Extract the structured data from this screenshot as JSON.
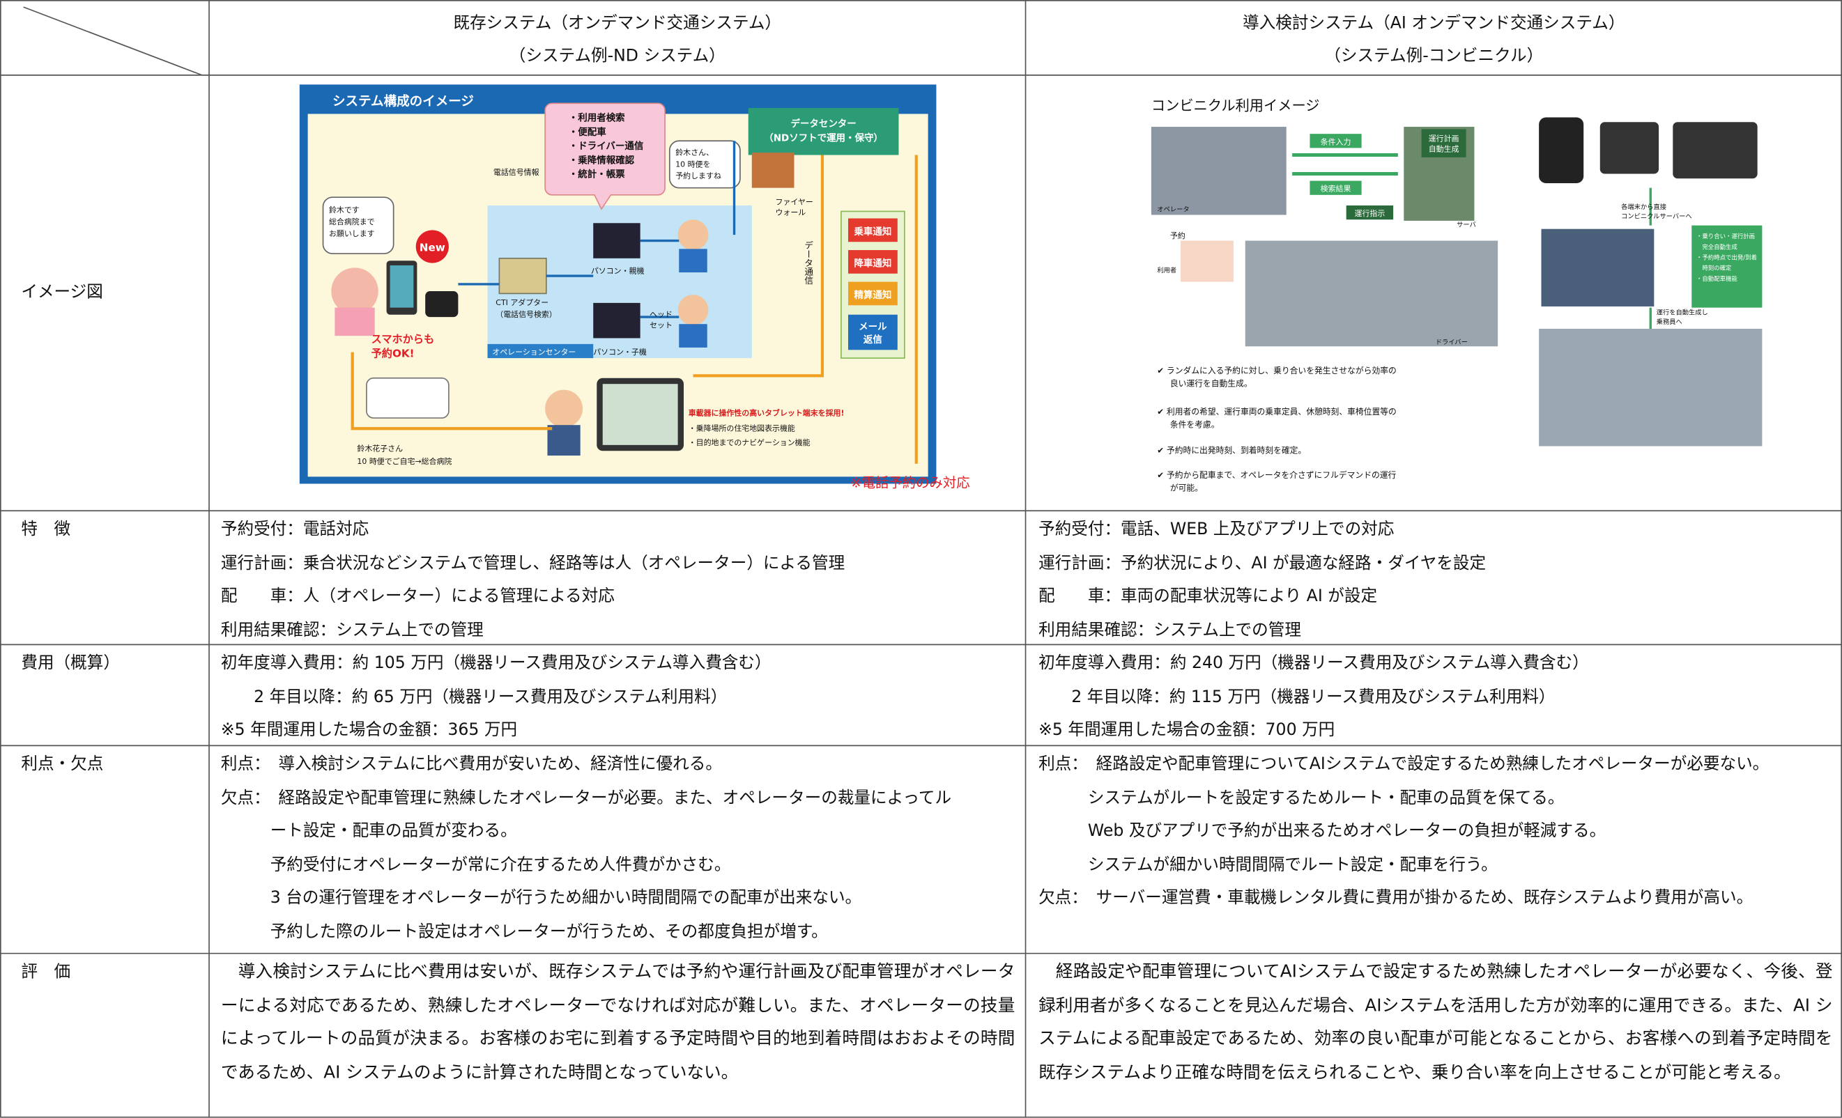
{
  "header": {
    "existing": [
      "既存システム（オンデマンド交通システム）",
      "（システム例-ND システム）"
    ],
    "proposed": [
      "導入検討システム（AI オンデマンド交通システム）",
      "（システム例-コンビニクル）"
    ]
  },
  "rows": [
    {
      "label": "イメージ図"
    },
    {
      "label": "特　徴",
      "existing": [
        "予約受付：電話対応",
        "運行計画：乗合状況などシステムで管理し、経路等は人（オペレーター）による管理",
        "配　　車：人（オペレーター）による管理による対応",
        "利用結果確認：システム上での管理"
      ],
      "proposed": [
        "予約受付：電話、WEB 上及びアプリ上での対応",
        "運行計画：予約状況により、AI が最適な経路・ダイヤを設定",
        "配　　車：車両の配車状況等により AI が設定",
        "利用結果確認：システム上での管理"
      ]
    },
    {
      "label": "費用（概算）",
      "existing": [
        "初年度導入費用：約 105 万円（機器リース費用及びシステム導入費含む）",
        "　　2 年目以降：約 65 万円（機器リース費用及びシステム利用料）",
        "※5 年間運用した場合の金額：365 万円"
      ],
      "proposed": [
        "初年度導入費用：約 240 万円（機器リース費用及びシステム導入費含む）",
        "　　2 年目以降：約 115 万円（機器リース費用及びシステム利用料）",
        "※5 年間運用した場合の金額：700 万円"
      ]
    },
    {
      "label": "利点・欠点",
      "existing": [
        "利点：　導入検討システムに比べ費用が安いため、経済性に優れる。",
        "欠点：　経路設定や配車管理に熟練したオペレーターが必要。また、オペレーターの裁量によってル",
        "　　　ート設定・配車の品質が変わる。",
        "　　　予約受付にオペレーターが常に介在するため人件費がかさむ。",
        "　　　3 台の運行管理をオペレーターが行うため細かい時間間隔での配車が出来ない。",
        "　　　予約した際のルート設定はオペレーターが行うため、その都度負担が増す。"
      ],
      "proposed": [
        "利点：　経路設定や配車管理についてAIシステムで設定するため熟練したオペレーターが必要ない。",
        "　　　システムがルートを設定するためルート・配車の品質を保てる。",
        "　　　Web 及びアプリで予約が出来るためオペレーターの負担が軽減する。",
        "　　　システムが細かい時間間隔でルート設定・配車を行う。",
        "欠点：　サーバー運営費・車載機レンタル費に費用が掛かるため、既存システムより費用が高い。"
      ]
    },
    {
      "label": "評　価",
      "existing": "　導入検討システムに比べ費用は安いが、既存システムでは予約や運行計画及び配車管理がオペレーターによる対応であるため、熟練したオペレーターでなければ対応が難しい。また、オペレーターの技量によってルートの品質が決まる。お客様のお宅に到着する予定時間や目的地到着時間はおおよその時間であるため、AI システムのように計算された時間となっていない。",
      "proposed": "　経路設定や配車管理についてAIシステムで設定するため熟練したオペレーターが必要なく、今後、登録利用者が多くなることを見込んだ場合、AIシステムを活用した方が効率的に運用できる。また、AI システムによる配車設定であるため、効率の良い配車が可能となることから、お客様への到着予定時間を既存システムより正確な時間を伝えられることや、乗り合い率を向上させることが可能と考える。"
    }
  ],
  "image1": {
    "title": "システム構成のイメージ",
    "functions": [
      "・利用者検索",
      "・便配車",
      "・ドライバー通信",
      "・乗降情報確認",
      "・統計・帳票"
    ],
    "datacenter": [
      "データセンター",
      "（NDソフトで運用・保守）"
    ],
    "phone_signal": "電話信号情報",
    "caller": [
      "鈴木です",
      "総合病院まで",
      "お願いします"
    ],
    "new": "New",
    "smartphone": [
      "スマホからも",
      "予約OK!"
    ],
    "cti": [
      "CTI アダプター",
      "（電話信号検索）"
    ],
    "pc_main": "パソコン・親機",
    "pc_sub": "パソコン・子機",
    "headset": [
      "ヘッド",
      "セット"
    ],
    "operation_center": "オペレーションセンター",
    "operator": [
      "鈴木さん、",
      "10 時便を",
      "予約しますね"
    ],
    "firewall": [
      "ファイヤー",
      "ウォール"
    ],
    "data_comm": "データ通信",
    "notices": [
      "乗車通知",
      "降車通知",
      "精算通知"
    ],
    "mail": [
      "メール",
      "返信"
    ],
    "tablet": [
      "車載器に操作性の高いタブレット端末を採用!",
      "・乗降場所の住宅地図表示機能",
      "・目的地までのナビゲーション機能"
    ],
    "passenger": [
      "鈴木花子さん",
      "10 時便でご自宅→総合病院"
    ],
    "note": "※電話予約のみ対応"
  },
  "image2": {
    "title": "コンビニクル利用イメージ",
    "input": "条件入力",
    "result": "検索結果",
    "instruction": "運行指示",
    "plan": [
      "運行計画",
      "自動生成"
    ],
    "operator": "オペレータ",
    "server": "サーバ",
    "reserve": "予約",
    "user": "利用者",
    "driver": "ドライバー",
    "direct": [
      "各端末から直接",
      "コンビニクルサーバーへ"
    ],
    "features": [
      "・乗り合い・運行計画",
      "　完全自動生成",
      "・予約時点で出発/到着",
      "　時刻の確定",
      "・自動配車機能"
    ],
    "generate": [
      "運行を自動生成し",
      "乗務員へ"
    ],
    "bullets": [
      [
        "✔ ランダムに入る予約に対し、乗り合いを発生させながら効率の",
        "良い運行を自動生成。"
      ],
      [
        "✔ 利用者の希望、運行車両の乗車定員、休憩時刻、車椅位置等の",
        "条件を考慮。"
      ],
      [
        "✔ 予約時に出発時刻、到着時刻を確定。"
      ],
      [
        "✔ 予約から配車まで、オペレータを介さずにフルデマンドの運行",
        "が可能。"
      ]
    ]
  }
}
